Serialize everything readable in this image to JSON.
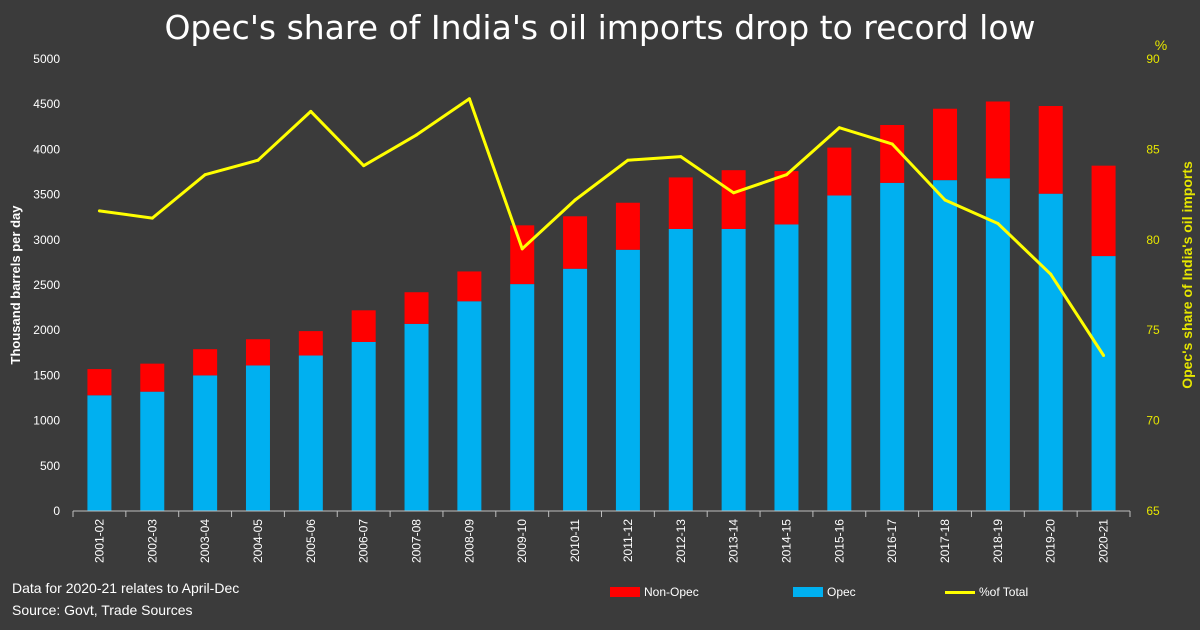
{
  "chart_data": {
    "type": "bar",
    "title": "Opec's share of India's oil imports drop to record low",
    "categories": [
      "2001-02",
      "2002-03",
      "2003-04",
      "2004-05",
      "2005-06",
      "2006-07",
      "2007-08",
      "2008-09",
      "2009-10",
      "2010-11",
      "2011-12",
      "2012-13",
      "2013-14",
      "2014-15",
      "2015-16",
      "2016-17",
      "2017-18",
      "2018-19",
      "2019-20",
      "2020-21"
    ],
    "stacked": true,
    "series": [
      {
        "name": "Opec",
        "color": "#00b0f0",
        "axis": "left",
        "values": [
          1280,
          1320,
          1500,
          1610,
          1720,
          1870,
          2070,
          2320,
          2510,
          2680,
          2890,
          3120,
          3120,
          3170,
          3490,
          3630,
          3660,
          3680,
          3510,
          2820
        ]
      },
      {
        "name": "Non-Opec",
        "color": "#ff0000",
        "axis": "left",
        "values": [
          290,
          310,
          290,
          290,
          270,
          350,
          350,
          330,
          650,
          580,
          520,
          570,
          650,
          590,
          530,
          640,
          790,
          850,
          970,
          1000
        ]
      },
      {
        "name": "%of Total",
        "color": "#ffff00",
        "type": "line",
        "axis": "right",
        "values": [
          81.6,
          81.2,
          83.6,
          84.4,
          87.1,
          84.1,
          85.8,
          87.8,
          79.5,
          82.2,
          84.4,
          84.6,
          82.6,
          83.6,
          86.2,
          85.3,
          82.2,
          80.9,
          78.1,
          73.6
        ]
      }
    ],
    "ylabel": "Thousand barrels per day",
    "ylim": [
      0,
      5000
    ],
    "yticks": [
      0,
      500,
      1000,
      1500,
      2000,
      2500,
      3000,
      3500,
      4000,
      4500,
      5000
    ],
    "y2label": "Opec's share of India's oil imports",
    "y2unit": "%",
    "y2lim": [
      65,
      90
    ],
    "y2ticks": [
      65,
      70,
      75,
      80,
      85,
      90
    ],
    "legend": [
      "Non-Opec",
      "Opec",
      "%of Total"
    ],
    "legend_position": "bottom"
  },
  "notes": {
    "line1": "Data for 2020-21 relates to April-Dec",
    "line2": "Source: Govt, Trade Sources"
  }
}
